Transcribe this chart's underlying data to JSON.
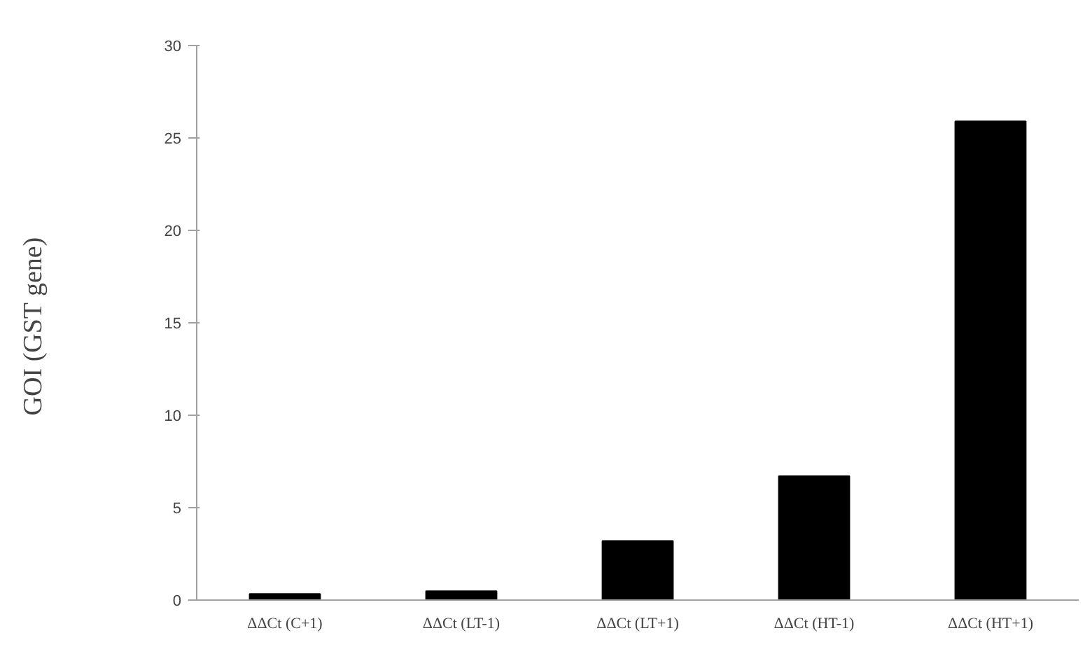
{
  "chart_data": {
    "type": "bar",
    "ylabel": "GOI (GST  gene)",
    "categories": [
      "ΔΔCt (C+1)",
      "ΔΔCt (LT-1)",
      "ΔΔCt (LT+1)",
      "ΔΔCt (HT-1)",
      "ΔΔCt (HT+1)"
    ],
    "values": [
      0.33,
      0.48,
      3.2,
      6.7,
      25.9
    ],
    "color": "#000000",
    "ylim": [
      0,
      30
    ],
    "yticks": [
      0,
      5,
      10,
      15,
      20,
      25,
      30
    ],
    "grid": false
  }
}
